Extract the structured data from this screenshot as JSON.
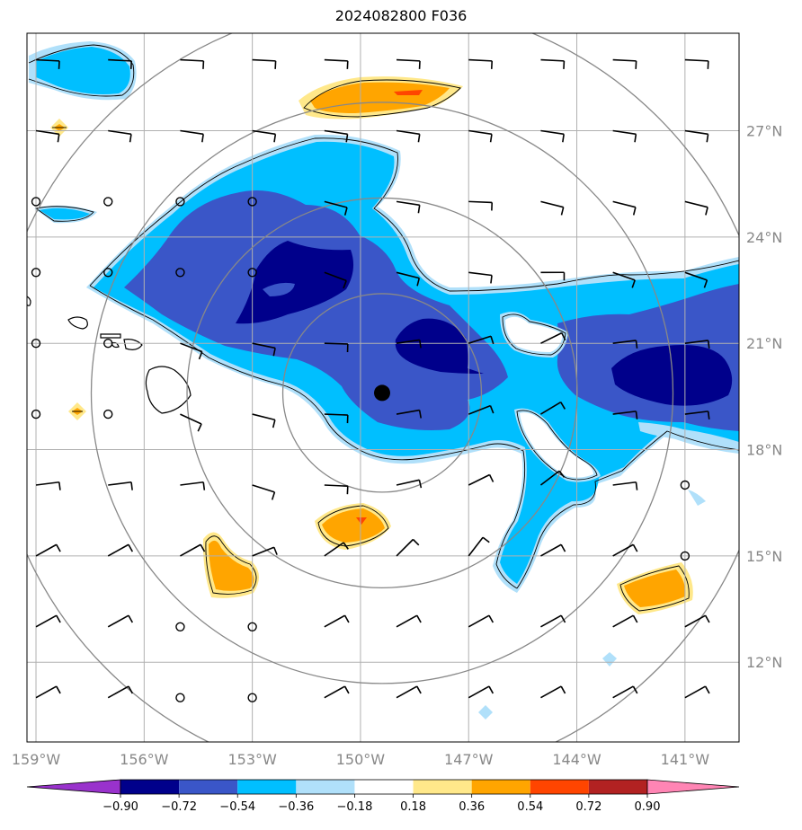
{
  "title": "2024082800 F036",
  "map": {
    "lon_range": [
      -159.25,
      -139.5
    ],
    "lat_range": [
      9.75,
      29.75
    ],
    "lon_ticks": [
      "159°W",
      "156°W",
      "153°W",
      "150°W",
      "147°W",
      "144°W",
      "141°W"
    ],
    "lat_ticks": [
      "27°N",
      "24°N",
      "21°N",
      "18°N",
      "15°N",
      "12°N"
    ],
    "storm_center": {
      "lon": -149.4,
      "lat": 19.6
    },
    "range_rings_deg": [
      2.8,
      5.5,
      8.2,
      11.0
    ],
    "gridlines": true
  },
  "colorbar": {
    "levels": [
      "−0.90",
      "−0.72",
      "−0.54",
      "−0.36",
      "−0.18",
      "0.18",
      "0.36",
      "0.54",
      "0.72",
      "0.90"
    ],
    "colors": [
      "#9932cc",
      "#00008b",
      "#3a56c8",
      "#00bfff",
      "#b0e0fa",
      "#ffffff",
      "#ffe88a",
      "#ffa500",
      "#ff4500",
      "#b22222",
      "#ff85b4"
    ]
  },
  "colors": {
    "deep_blue": "#00008b",
    "mid_blue": "#3a56c8",
    "sky_blue": "#00bfff",
    "pale_blue": "#b0e0fa",
    "pale_yellow": "#ffe88a",
    "orange": "#ffa500",
    "red_orange": "#ff4500",
    "grid": "#b0b0b0",
    "ring": "#888888"
  }
}
